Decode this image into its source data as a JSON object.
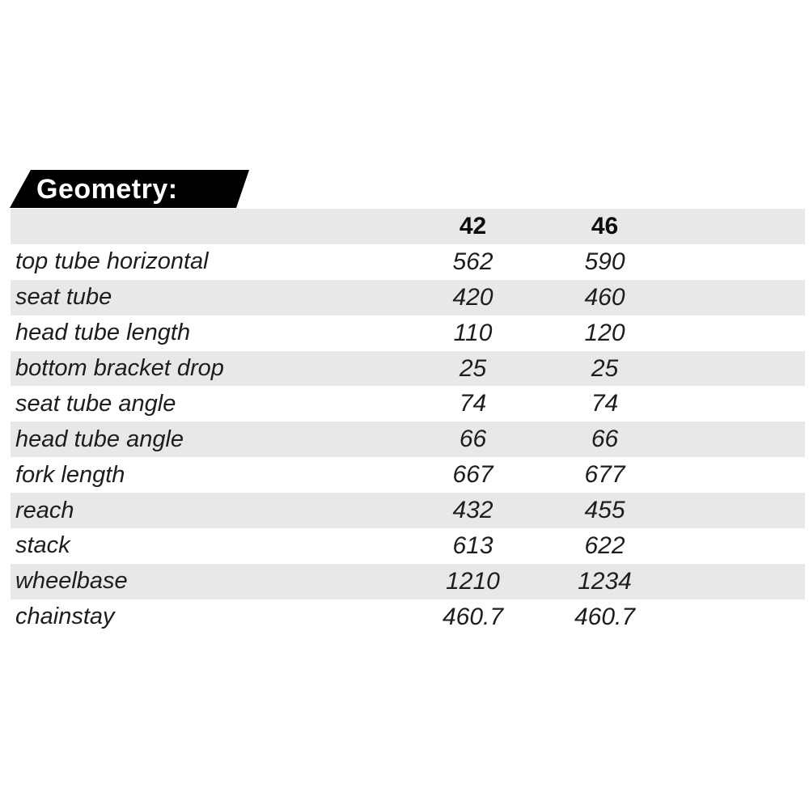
{
  "chart_data": {
    "type": "table",
    "title": "Geometry:",
    "columns": [
      "42",
      "46"
    ],
    "rows": [
      {
        "label": "top tube horizontal",
        "values": [
          "562",
          "590"
        ]
      },
      {
        "label": "seat tube",
        "values": [
          "420",
          "460"
        ]
      },
      {
        "label": "head tube length",
        "values": [
          "110",
          "120"
        ]
      },
      {
        "label": "bottom bracket drop",
        "values": [
          "25",
          "25"
        ]
      },
      {
        "label": "seat tube angle",
        "values": [
          "74",
          "74"
        ]
      },
      {
        "label": "head tube angle",
        "values": [
          "66",
          "66"
        ]
      },
      {
        "label": "fork length",
        "values": [
          "667",
          "677"
        ]
      },
      {
        "label": "reach",
        "values": [
          "432",
          "455"
        ]
      },
      {
        "label": "stack",
        "values": [
          "613",
          "622"
        ]
      },
      {
        "label": "wheelbase",
        "values": [
          "1210",
          "1234"
        ]
      },
      {
        "label": "chainstay",
        "values": [
          "460.7",
          "460.7"
        ]
      }
    ],
    "layout": {
      "stripes": true,
      "header_row_shaded": true
    }
  },
  "colors": {
    "banner_bg": "#000000",
    "banner_text": "#ffffff",
    "stripe": "#e8e8e8",
    "text": "#1d1d1d",
    "background": "#ffffff"
  }
}
